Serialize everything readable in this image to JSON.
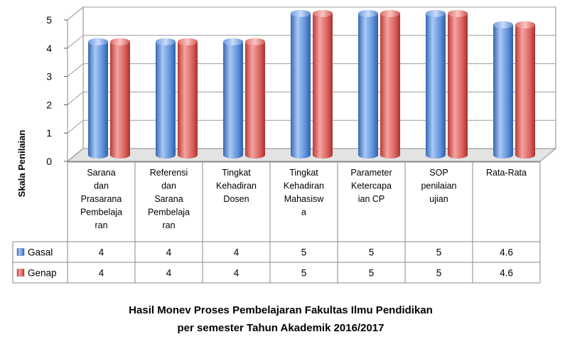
{
  "chart_data": {
    "type": "bar",
    "title": "Hasil Monev Proses Pembelajaran Fakultas Ilmu Pendidikan",
    "subtitle": "per semester Tahun Akademik 2016/2017",
    "ylabel": "Skala Penilaian",
    "xlabel": "",
    "ylim": [
      0,
      5
    ],
    "yticks": [
      "0",
      "1",
      "2",
      "3",
      "4",
      "5"
    ],
    "categories": [
      [
        "Sarana",
        "dan",
        "Prasarana",
        "Pembelaja",
        "ran"
      ],
      [
        "Referensi",
        "dan",
        "Sarana",
        "Pembelaja",
        "ran"
      ],
      [
        "Tingkat",
        "Kehadiran",
        "Dosen"
      ],
      [
        "Tingkat",
        "Kehadiran",
        "Mahasisw",
        "a"
      ],
      [
        "Parameter",
        "Ketercapa",
        "ian CP"
      ],
      [
        "SOP",
        "penilaian",
        "ujian"
      ],
      [
        "Rata-Rata"
      ]
    ],
    "series": [
      {
        "name": "Gasal",
        "values": [
          4,
          4,
          4,
          5,
          5,
          5,
          4.6
        ],
        "labels": [
          "4",
          "4",
          "4",
          "5",
          "5",
          "5",
          "4.6"
        ],
        "color": "#4f81bd"
      },
      {
        "name": "Genap",
        "values": [
          4,
          4,
          4,
          5,
          5,
          5,
          4.6
        ],
        "labels": [
          "4",
          "4",
          "4",
          "5",
          "5",
          "5",
          "4.6"
        ],
        "color": "#c0504d"
      }
    ],
    "grid": true,
    "legend": "data-table"
  }
}
